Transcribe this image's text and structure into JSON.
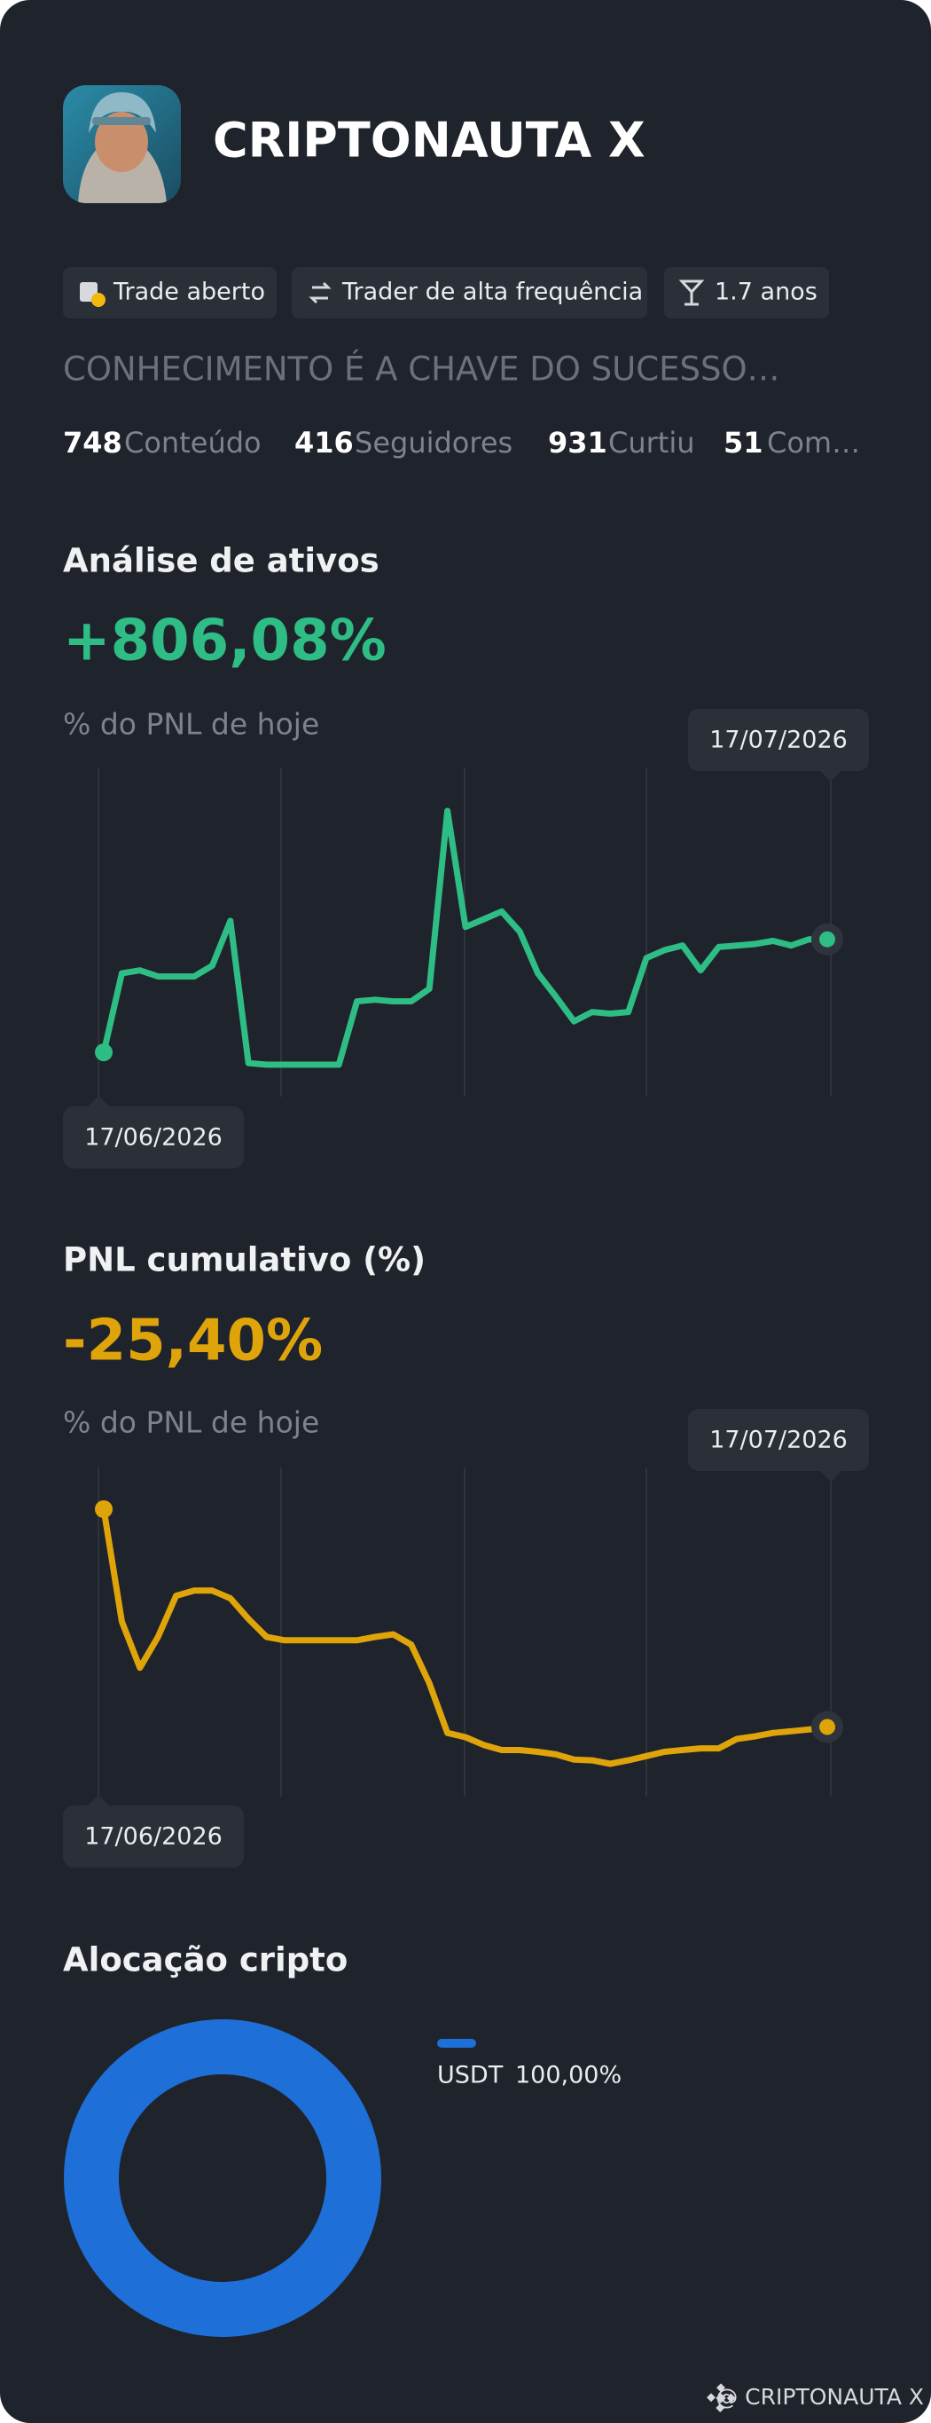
{
  "profile": {
    "name": "CRIPTONAUTA X",
    "tags": [
      "Trade aberto",
      "Trader de alta frequência",
      "1.7 anos"
    ],
    "motto": "CONHECIMENTO É A CHAVE DO SUCESSO…",
    "stats": [
      {
        "value": 748,
        "label": "Conteúdo"
      },
      {
        "value": 416,
        "label": "Seguidores"
      },
      {
        "value": 931,
        "label": "Curtiu"
      },
      {
        "value": 51,
        "label": "Com…"
      }
    ]
  },
  "chart_data": [
    {
      "type": "line",
      "title": "Análise de ativos",
      "headline": "+806,08%",
      "subtitle": "% do PNL de hoje",
      "start_label": "17/06/2026",
      "end_label": "17/07/2026",
      "color": "#2ebd85",
      "values": [
        0,
        563,
        585,
        541,
        541,
        541,
        618,
        938,
        -77,
        -88,
        -88,
        -88,
        -88,
        -88,
        364,
        375,
        364,
        364,
        453,
        1722,
        894,
        949,
        1005,
        861,
        563,
        397,
        221,
        287,
        276,
        287,
        673,
        729,
        762,
        585,
        751,
        762,
        773,
        795,
        762,
        806.08,
        806.08
      ]
    },
    {
      "type": "line",
      "title": "PNL cumulativo (%)",
      "headline": "-25,40%",
      "subtitle": "% do PNL de hoje",
      "start_label": "17/06/2026",
      "end_label": "17/07/2026",
      "color": "#e0a40b",
      "values": [
        0,
        -13.1,
        -18.5,
        -14.9,
        -10.1,
        -9.5,
        -9.5,
        -10.4,
        -12.8,
        -14.9,
        -15.3,
        -15.3,
        -15.3,
        -15.3,
        -15.3,
        -14.9,
        -14.6,
        -15.8,
        -20.3,
        -26.1,
        -26.6,
        -27.5,
        -28.1,
        -28.1,
        -28.3,
        -28.6,
        -29.2,
        -29.3,
        -29.7,
        -29.3,
        -28.8,
        -28.3,
        -28.1,
        -27.9,
        -27.9,
        -26.8,
        -26.5,
        -26.1,
        -25.9,
        -25.7,
        -25.4
      ]
    },
    {
      "type": "donut",
      "title": "Alocação cripto",
      "categories": [
        "USDT"
      ],
      "values": [
        100
      ],
      "value_labels": [
        "100,00%"
      ],
      "colors": [
        "#1f6fd8"
      ]
    }
  ],
  "footer": "@ CRIPTONAUTA X"
}
